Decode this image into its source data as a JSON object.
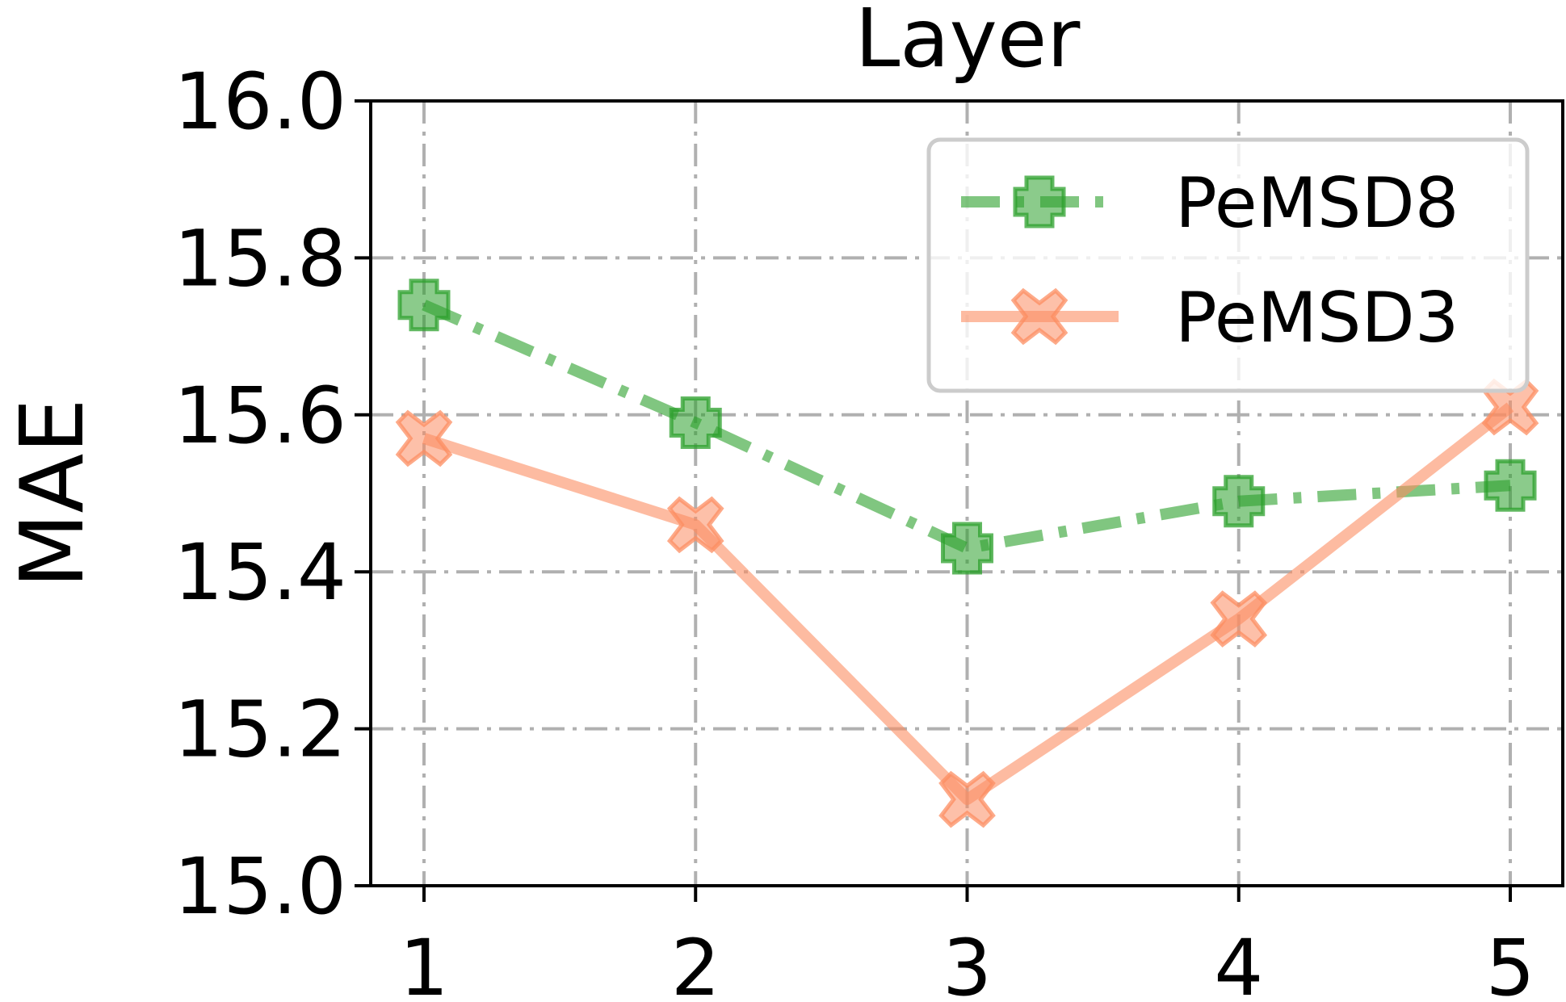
{
  "chart_data": {
    "type": "line",
    "title": "Layer",
    "xlabel": "",
    "ylabel": "MAE",
    "x": [
      1,
      2,
      3,
      4,
      5
    ],
    "xticks": [
      "1",
      "2",
      "3",
      "4",
      "5"
    ],
    "ylim": [
      15.0,
      16.0
    ],
    "yticks": [
      "15.0",
      "15.2",
      "15.4",
      "15.6",
      "15.8",
      "16.0"
    ],
    "grid": true,
    "legend_position": "top-right",
    "series": [
      {
        "name": "PeMSD8",
        "values": [
          15.74,
          15.59,
          15.43,
          15.49,
          15.51
        ],
        "color": "#2ca02c",
        "line_style": "dash-dot",
        "marker": "plus"
      },
      {
        "name": "PeMSD3",
        "values": [
          15.57,
          15.46,
          15.11,
          15.34,
          15.61
        ],
        "color": "#fc8d62",
        "line_style": "solid",
        "marker": "x"
      }
    ]
  }
}
